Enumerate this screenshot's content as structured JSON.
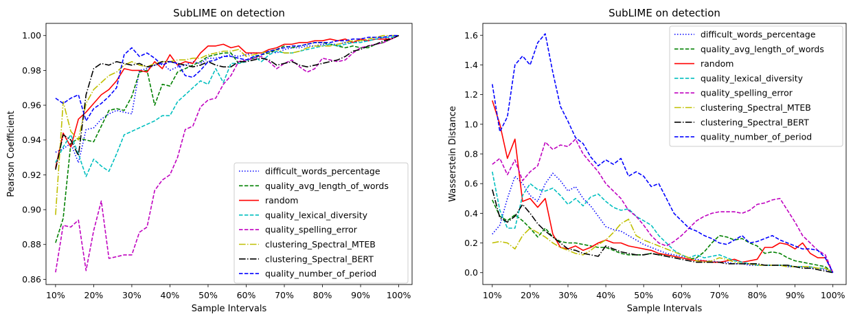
{
  "chart_data": [
    {
      "type": "line",
      "title": "SubLIME on detection",
      "xlabel": "Sample Intervals",
      "ylabel": "Pearson Coefficient",
      "ylim": [
        0.857,
        1.007
      ],
      "xlim": [
        0.075,
        1.035
      ],
      "yticks": [
        0.86,
        0.88,
        0.9,
        0.92,
        0.94,
        0.96,
        0.98,
        1.0
      ],
      "ytick_labels": [
        "0.86",
        "0.88",
        "0.90",
        "0.92",
        "0.94",
        "0.96",
        "0.98",
        "1.00"
      ],
      "xticks": [
        0.1,
        0.2,
        0.3,
        0.4,
        0.5,
        0.6,
        0.7,
        0.8,
        0.9,
        1.0
      ],
      "xtick_labels": [
        "10%",
        "20%",
        "30%",
        "40%",
        "50%",
        "60%",
        "70%",
        "80%",
        "90%",
        "100%"
      ],
      "legend_position": "lower-right",
      "x": [
        0.1,
        0.12,
        0.14,
        0.16,
        0.18,
        0.2,
        0.22,
        0.24,
        0.26,
        0.28,
        0.3,
        0.32,
        0.34,
        0.36,
        0.38,
        0.4,
        0.42,
        0.44,
        0.46,
        0.48,
        0.5,
        0.52,
        0.54,
        0.56,
        0.58,
        0.6,
        0.62,
        0.64,
        0.66,
        0.68,
        0.7,
        0.72,
        0.74,
        0.76,
        0.78,
        0.8,
        0.82,
        0.84,
        0.86,
        0.88,
        0.9,
        0.92,
        0.94,
        0.96,
        0.98,
        1.0
      ],
      "series": [
        {
          "name": "difficult_words_percentage",
          "color": "#0000ff",
          "dash": "dotted",
          "values": [
            0.933,
            0.935,
            0.938,
            0.927,
            0.946,
            0.947,
            0.952,
            0.955,
            0.957,
            0.956,
            0.955,
            0.98,
            0.981,
            0.983,
            0.984,
            0.98,
            0.982,
            0.983,
            0.985,
            0.984,
            0.987,
            0.987,
            0.988,
            0.989,
            0.988,
            0.989,
            0.99,
            0.99,
            0.991,
            0.99,
            0.992,
            0.993,
            0.993,
            0.994,
            0.994,
            0.995,
            0.995,
            0.995,
            0.996,
            0.996,
            0.997,
            0.997,
            0.998,
            0.998,
            0.999,
            1.0
          ]
        },
        {
          "name": "quality_avg_length_of_words",
          "color": "#008000",
          "dash": "dashed",
          "values": [
            0.881,
            0.895,
            0.938,
            0.941,
            0.94,
            0.939,
            0.948,
            0.957,
            0.958,
            0.957,
            0.965,
            0.979,
            0.98,
            0.96,
            0.972,
            0.971,
            0.979,
            0.981,
            0.983,
            0.985,
            0.988,
            0.989,
            0.99,
            0.99,
            0.984,
            0.986,
            0.987,
            0.989,
            0.99,
            0.992,
            0.994,
            0.993,
            0.994,
            0.995,
            0.996,
            0.996,
            0.995,
            0.994,
            0.993,
            0.994,
            0.993,
            0.993,
            0.995,
            0.996,
            0.998,
            1.0
          ]
        },
        {
          "name": "random",
          "color": "#ff0000",
          "dash": "solid",
          "values": [
            0.924,
            0.944,
            0.936,
            0.952,
            0.956,
            0.961,
            0.966,
            0.969,
            0.974,
            0.981,
            0.98,
            0.98,
            0.979,
            0.985,
            0.981,
            0.989,
            0.983,
            0.985,
            0.984,
            0.99,
            0.994,
            0.994,
            0.995,
            0.993,
            0.994,
            0.99,
            0.99,
            0.99,
            0.992,
            0.993,
            0.995,
            0.995,
            0.996,
            0.996,
            0.997,
            0.997,
            0.998,
            0.997,
            0.998,
            0.996,
            0.998,
            0.997,
            0.998,
            0.998,
            0.998,
            1.0
          ]
        },
        {
          "name": "quality_lexical_diversity",
          "color": "#00bfbf",
          "dash": "dashed",
          "values": [
            0.927,
            0.936,
            0.943,
            0.932,
            0.919,
            0.929,
            0.925,
            0.922,
            0.932,
            0.943,
            0.945,
            0.947,
            0.949,
            0.951,
            0.954,
            0.954,
            0.962,
            0.966,
            0.97,
            0.974,
            0.972,
            0.981,
            0.973,
            0.984,
            0.984,
            0.985,
            0.988,
            0.985,
            0.989,
            0.991,
            0.99,
            0.99,
            0.991,
            0.992,
            0.993,
            0.994,
            0.995,
            0.994,
            0.995,
            0.996,
            0.996,
            0.997,
            0.998,
            0.999,
            0.999,
            1.0
          ]
        },
        {
          "name": "quality_spelling_error",
          "color": "#bf00bf",
          "dash": "dashed",
          "values": [
            0.864,
            0.891,
            0.89,
            0.894,
            0.865,
            0.888,
            0.905,
            0.872,
            0.873,
            0.874,
            0.874,
            0.887,
            0.89,
            0.911,
            0.917,
            0.92,
            0.93,
            0.946,
            0.948,
            0.959,
            0.963,
            0.964,
            0.972,
            0.977,
            0.985,
            0.986,
            0.987,
            0.988,
            0.985,
            0.981,
            0.984,
            0.986,
            0.982,
            0.979,
            0.981,
            0.987,
            0.986,
            0.985,
            0.986,
            0.99,
            0.993,
            0.994,
            0.995,
            0.996,
            0.998,
            1.0
          ]
        },
        {
          "name": "clustering_Spectral_MTEB",
          "color": "#bfbf00",
          "dash": "dashdot",
          "values": [
            0.897,
            0.962,
            0.945,
            0.94,
            0.961,
            0.969,
            0.973,
            0.977,
            0.979,
            0.983,
            0.985,
            0.983,
            0.982,
            0.984,
            0.985,
            0.985,
            0.986,
            0.986,
            0.987,
            0.987,
            0.989,
            0.99,
            0.991,
            0.991,
            0.992,
            0.988,
            0.989,
            0.99,
            0.991,
            0.992,
            0.99,
            0.99,
            0.991,
            0.993,
            0.994,
            0.994,
            0.994,
            0.995,
            0.996,
            0.997,
            0.997,
            0.998,
            0.999,
            1.0,
            1.0,
            1.0
          ]
        },
        {
          "name": "clustering_Spectral_BERT",
          "color": "#000000",
          "dash": "dashdot",
          "values": [
            0.923,
            0.943,
            0.94,
            0.931,
            0.966,
            0.981,
            0.984,
            0.983,
            0.985,
            0.984,
            0.983,
            0.984,
            0.982,
            0.983,
            0.985,
            0.985,
            0.984,
            0.983,
            0.982,
            0.983,
            0.985,
            0.983,
            0.982,
            0.982,
            0.985,
            0.985,
            0.986,
            0.987,
            0.986,
            0.983,
            0.984,
            0.985,
            0.983,
            0.982,
            0.983,
            0.984,
            0.985,
            0.986,
            0.988,
            0.991,
            0.992,
            0.994,
            0.995,
            0.997,
            0.998,
            1.0
          ]
        },
        {
          "name": "quality_number_of_period",
          "color": "#0000ff",
          "dash": "dashed",
          "values": [
            0.964,
            0.961,
            0.964,
            0.966,
            0.951,
            0.958,
            0.961,
            0.965,
            0.97,
            0.989,
            0.993,
            0.988,
            0.99,
            0.987,
            0.983,
            0.985,
            0.984,
            0.977,
            0.976,
            0.98,
            0.985,
            0.986,
            0.988,
            0.988,
            0.987,
            0.986,
            0.988,
            0.989,
            0.991,
            0.992,
            0.993,
            0.994,
            0.994,
            0.995,
            0.996,
            0.996,
            0.996,
            0.997,
            0.997,
            0.998,
            0.998,
            0.999,
            0.999,
            0.999,
            1.0,
            1.0
          ]
        }
      ]
    },
    {
      "type": "line",
      "title": "SubLIME on detection",
      "xlabel": "Sample Intervals",
      "ylabel": "Wasserstein Distance",
      "ylim": [
        -0.08,
        1.68
      ],
      "xlim": [
        0.075,
        1.035
      ],
      "yticks": [
        0.0,
        0.2,
        0.4,
        0.6,
        0.8,
        1.0,
        1.2,
        1.4,
        1.6
      ],
      "ytick_labels": [
        "0.0",
        "0.2",
        "0.4",
        "0.6",
        "0.8",
        "1.0",
        "1.2",
        "1.4",
        "1.6"
      ],
      "xticks": [
        0.1,
        0.2,
        0.3,
        0.4,
        0.5,
        0.6,
        0.7,
        0.8,
        0.9,
        1.0
      ],
      "xtick_labels": [
        "10%",
        "20%",
        "30%",
        "40%",
        "50%",
        "60%",
        "70%",
        "80%",
        "90%",
        "100%"
      ],
      "legend_position": "upper-right",
      "x": [
        0.1,
        0.12,
        0.14,
        0.16,
        0.18,
        0.2,
        0.22,
        0.24,
        0.26,
        0.28,
        0.3,
        0.32,
        0.34,
        0.36,
        0.38,
        0.4,
        0.42,
        0.44,
        0.46,
        0.48,
        0.5,
        0.52,
        0.54,
        0.56,
        0.58,
        0.6,
        0.62,
        0.64,
        0.66,
        0.68,
        0.7,
        0.72,
        0.74,
        0.76,
        0.78,
        0.8,
        0.82,
        0.84,
        0.86,
        0.88,
        0.9,
        0.92,
        0.94,
        0.96,
        0.98,
        1.0
      ],
      "series": [
        {
          "name": "difficult_words_percentage",
          "color": "#0000ff",
          "dash": "dotted",
          "values": [
            0.26,
            0.32,
            0.5,
            0.65,
            0.6,
            0.52,
            0.48,
            0.6,
            0.67,
            0.62,
            0.55,
            0.58,
            0.5,
            0.45,
            0.38,
            0.31,
            0.29,
            0.28,
            0.25,
            0.22,
            0.19,
            0.17,
            0.15,
            0.13,
            0.12,
            0.11,
            0.1,
            0.09,
            0.08,
            0.08,
            0.07,
            0.07,
            0.06,
            0.06,
            0.05,
            0.05,
            0.05,
            0.05,
            0.05,
            0.04,
            0.04,
            0.04,
            0.03,
            0.03,
            0.02,
            0.0
          ]
        },
        {
          "name": "quality_avg_length_of_words",
          "color": "#008000",
          "dash": "dashed",
          "values": [
            0.49,
            0.38,
            0.35,
            0.39,
            0.35,
            0.3,
            0.24,
            0.3,
            0.24,
            0.21,
            0.2,
            0.2,
            0.19,
            0.18,
            0.17,
            0.17,
            0.15,
            0.13,
            0.12,
            0.12,
            0.12,
            0.13,
            0.12,
            0.12,
            0.11,
            0.1,
            0.09,
            0.1,
            0.14,
            0.2,
            0.25,
            0.24,
            0.22,
            0.23,
            0.2,
            0.18,
            0.13,
            0.14,
            0.13,
            0.1,
            0.08,
            0.07,
            0.06,
            0.05,
            0.04,
            0.0
          ]
        },
        {
          "name": "random",
          "color": "#ff0000",
          "dash": "solid",
          "values": [
            1.16,
            1.0,
            0.77,
            0.9,
            0.48,
            0.5,
            0.44,
            0.5,
            0.26,
            0.17,
            0.16,
            0.18,
            0.15,
            0.17,
            0.2,
            0.22,
            0.2,
            0.2,
            0.18,
            0.17,
            0.16,
            0.15,
            0.13,
            0.12,
            0.11,
            0.1,
            0.09,
            0.08,
            0.08,
            0.07,
            0.07,
            0.08,
            0.09,
            0.07,
            0.08,
            0.09,
            0.17,
            0.17,
            0.2,
            0.19,
            0.16,
            0.2,
            0.13,
            0.1,
            0.1,
            0.0
          ]
        },
        {
          "name": "quality_lexical_diversity",
          "color": "#00bfbf",
          "dash": "dashed",
          "values": [
            0.68,
            0.42,
            0.3,
            0.3,
            0.52,
            0.6,
            0.56,
            0.55,
            0.57,
            0.52,
            0.46,
            0.5,
            0.45,
            0.51,
            0.53,
            0.48,
            0.44,
            0.42,
            0.43,
            0.38,
            0.35,
            0.32,
            0.25,
            0.2,
            0.15,
            0.12,
            0.1,
            0.12,
            0.1,
            0.11,
            0.12,
            0.1,
            0.08,
            0.07,
            0.06,
            0.05,
            0.05,
            0.05,
            0.05,
            0.05,
            0.04,
            0.04,
            0.04,
            0.03,
            0.03,
            0.0
          ]
        },
        {
          "name": "quality_spelling_error",
          "color": "#bf00bf",
          "dash": "dashed",
          "values": [
            0.73,
            0.77,
            0.66,
            0.76,
            0.62,
            0.68,
            0.72,
            0.88,
            0.83,
            0.86,
            0.85,
            0.9,
            0.8,
            0.74,
            0.68,
            0.6,
            0.55,
            0.5,
            0.42,
            0.38,
            0.32,
            0.25,
            0.2,
            0.18,
            0.21,
            0.25,
            0.3,
            0.35,
            0.38,
            0.4,
            0.41,
            0.41,
            0.41,
            0.4,
            0.42,
            0.46,
            0.47,
            0.49,
            0.5,
            0.42,
            0.34,
            0.25,
            0.2,
            0.15,
            0.12,
            0.0
          ]
        },
        {
          "name": "clustering_Spectral_MTEB",
          "color": "#bfbf00",
          "dash": "dashdot",
          "values": [
            0.2,
            0.21,
            0.2,
            0.16,
            0.25,
            0.3,
            0.27,
            0.24,
            0.2,
            0.17,
            0.15,
            0.13,
            0.12,
            0.15,
            0.19,
            0.22,
            0.27,
            0.33,
            0.36,
            0.25,
            0.22,
            0.2,
            0.18,
            0.16,
            0.14,
            0.12,
            0.1,
            0.08,
            0.07,
            0.08,
            0.1,
            0.09,
            0.07,
            0.06,
            0.06,
            0.05,
            0.05,
            0.05,
            0.05,
            0.04,
            0.04,
            0.04,
            0.04,
            0.03,
            0.03,
            0.0
          ]
        },
        {
          "name": "clustering_Spectral_BERT",
          "color": "#000000",
          "dash": "dashdot",
          "values": [
            0.56,
            0.37,
            0.34,
            0.38,
            0.46,
            0.4,
            0.33,
            0.28,
            0.24,
            0.2,
            0.16,
            0.15,
            0.13,
            0.12,
            0.11,
            0.18,
            0.16,
            0.14,
            0.13,
            0.12,
            0.12,
            0.13,
            0.12,
            0.11,
            0.1,
            0.09,
            0.08,
            0.07,
            0.07,
            0.07,
            0.07,
            0.06,
            0.06,
            0.06,
            0.06,
            0.06,
            0.05,
            0.05,
            0.05,
            0.05,
            0.04,
            0.03,
            0.03,
            0.02,
            0.01,
            0.0
          ]
        },
        {
          "name": "quality_number_of_period",
          "color": "#0000ff",
          "dash": "dashed",
          "values": [
            1.27,
            0.95,
            1.05,
            1.4,
            1.46,
            1.4,
            1.55,
            1.61,
            1.35,
            1.12,
            1.02,
            0.91,
            0.87,
            0.78,
            0.72,
            0.76,
            0.73,
            0.77,
            0.65,
            0.68,
            0.65,
            0.58,
            0.6,
            0.5,
            0.4,
            0.35,
            0.3,
            0.28,
            0.25,
            0.23,
            0.2,
            0.19,
            0.22,
            0.25,
            0.2,
            0.21,
            0.23,
            0.25,
            0.22,
            0.2,
            0.18,
            0.16,
            0.16,
            0.15,
            0.1,
            0.0
          ]
        }
      ]
    }
  ]
}
